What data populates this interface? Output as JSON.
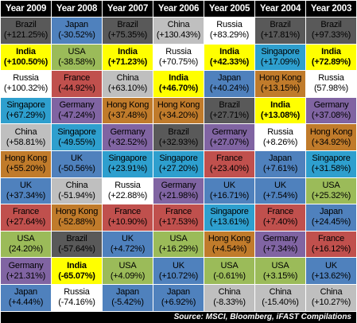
{
  "chart_data": {
    "type": "table",
    "title": "",
    "years": [
      "Year 2009",
      "Year 2008",
      "Year 2007",
      "Year 2006",
      "Year 2005",
      "Year 2004",
      "Year 2003"
    ],
    "colors": {
      "Brazil": "#595959",
      "India": "#ffff00",
      "Russia": "#ffffff",
      "Singapore": "#2e9fce",
      "China": "#bfbfbf",
      "Hong Kong": "#c07b2b",
      "UK": "#4f81bd",
      "France": "#c0504d",
      "USA": "#9bbb59",
      "Germany": "#8064a2",
      "Japan": "#4f81bd"
    },
    "ranks": [
      [
        {
          "m": "Brazil",
          "v": "(+121.25%)"
        },
        {
          "m": "Japan",
          "v": "(-30.52%)"
        },
        {
          "m": "Brazil",
          "v": "(+75.35%)"
        },
        {
          "m": "China",
          "v": "(+130.43%)"
        },
        {
          "m": "Russia",
          "v": "(+83.29%)"
        },
        {
          "m": "Brazil",
          "v": "(+17.81%)"
        },
        {
          "m": "Brazil",
          "v": "(+97.33%)"
        }
      ],
      [
        {
          "m": "India",
          "v": "(+100.50%)"
        },
        {
          "m": "USA",
          "v": "(-38.58%)"
        },
        {
          "m": "India",
          "v": "(+71.23%)"
        },
        {
          "m": "Russia",
          "v": "(+70.75%)"
        },
        {
          "m": "India",
          "v": "(+42.33%)"
        },
        {
          "m": "Singapore",
          "v": "(+17.09%)"
        },
        {
          "m": "India",
          "v": "(+72.89%)"
        }
      ],
      [
        {
          "m": "Russia",
          "v": "(+100.32%)"
        },
        {
          "m": "France",
          "v": "(-44.92%)"
        },
        {
          "m": "China",
          "v": "(+63.10%)"
        },
        {
          "m": "India",
          "v": "(+46.70%)"
        },
        {
          "m": "Japan",
          "v": "(+40.24%)"
        },
        {
          "m": "Hong Kong",
          "v": "(+13.15%)"
        },
        {
          "m": "Russia",
          "v": "(57.98%)"
        }
      ],
      [
        {
          "m": "Singapore",
          "v": "(+67.29%)"
        },
        {
          "m": "Germany",
          "v": "(-47.24%)"
        },
        {
          "m": "Hong Kong",
          "v": "(+37.48%)"
        },
        {
          "m": "Hong Kong",
          "v": "(+34.20%)"
        },
        {
          "m": "Brazil",
          "v": "(+27.71%)"
        },
        {
          "m": "India",
          "v": "(+13.08%)"
        },
        {
          "m": "Germany",
          "v": "(+37.08%)"
        }
      ],
      [
        {
          "m": "China",
          "v": "(+58.81%)"
        },
        {
          "m": "Singapore",
          "v": "(-49.55%)"
        },
        {
          "m": "Germany",
          "v": "(+32.52%)"
        },
        {
          "m": "Brazil",
          "v": "(+32.93%)"
        },
        {
          "m": "Germany",
          "v": "(+27.07%)"
        },
        {
          "m": "Russia",
          "v": "(+8.26%)"
        },
        {
          "m": "Hong Kong",
          "v": "(+34.92%)"
        }
      ],
      [
        {
          "m": "Hong Kong",
          "v": "(+55.20%)"
        },
        {
          "m": "UK",
          "v": "(-50.56%)"
        },
        {
          "m": "Singapore",
          "v": "(+23.91%)"
        },
        {
          "m": "Singapore",
          "v": "(+27.20%)"
        },
        {
          "m": "France",
          "v": "(+23.40%)"
        },
        {
          "m": "Japan",
          "v": "(+7.61%)"
        },
        {
          "m": "Singapore",
          "v": "(+31.58%)"
        }
      ],
      [
        {
          "m": "UK",
          "v": "(+37.34%)"
        },
        {
          "m": "China",
          "v": "(-51.94%)"
        },
        {
          "m": "Russia",
          "v": "(+22.88%)"
        },
        {
          "m": "Germany",
          "v": "(+21.98%)"
        },
        {
          "m": "UK",
          "v": "(+16.71%)"
        },
        {
          "m": "UK",
          "v": "(+7.54%)"
        },
        {
          "m": "USA",
          "v": "(+25.32%)"
        }
      ],
      [
        {
          "m": "France",
          "v": "(+27.64%)"
        },
        {
          "m": "Hong Kong",
          "v": "(-52.88%)"
        },
        {
          "m": "France",
          "v": "(+10.90%)"
        },
        {
          "m": "France",
          "v": "(+17.53%)"
        },
        {
          "m": "Singapore",
          "v": "(+13.61%)"
        },
        {
          "m": "France",
          "v": "(+7.40%)"
        },
        {
          "m": "Japan",
          "v": "(+24.45%)"
        }
      ],
      [
        {
          "m": "USA",
          "v": "(24.20%)"
        },
        {
          "m": "Brazil",
          "v": "(-57.64%)"
        },
        {
          "m": "UK",
          "v": "(+4.72%)"
        },
        {
          "m": "USA",
          "v": "(+16.29%)"
        },
        {
          "m": "Hong Kong",
          "v": "(+4.54%)"
        },
        {
          "m": "Germany",
          "v": "(+7.34%)"
        },
        {
          "m": "France",
          "v": "(+16.12%)"
        }
      ],
      [
        {
          "m": "Germany",
          "v": "(+21.31%)"
        },
        {
          "m": "India",
          "v": "(-65.07%)"
        },
        {
          "m": "USA",
          "v": "(+4.09%)"
        },
        {
          "m": "UK",
          "v": "(+10.72%)"
        },
        {
          "m": "USA",
          "v": "(-0.61%)"
        },
        {
          "m": "USA",
          "v": "(+3.15%)"
        },
        {
          "m": "UK",
          "v": "(+13.62%)"
        }
      ],
      [
        {
          "m": "Japan",
          "v": "(+4.44%)"
        },
        {
          "m": "Russia",
          "v": "(-74.16%)"
        },
        {
          "m": "Japan",
          "v": "(-5.42%)"
        },
        {
          "m": "Japan",
          "v": "(+6.92%)"
        },
        {
          "m": "China",
          "v": "(-8.33%)"
        },
        {
          "m": "China",
          "v": "(-15.40%)"
        },
        {
          "m": "China",
          "v": "(+10.27%)"
        }
      ]
    ],
    "source": "Source: MSCI, Bloomberg, iFAST Compilations"
  }
}
